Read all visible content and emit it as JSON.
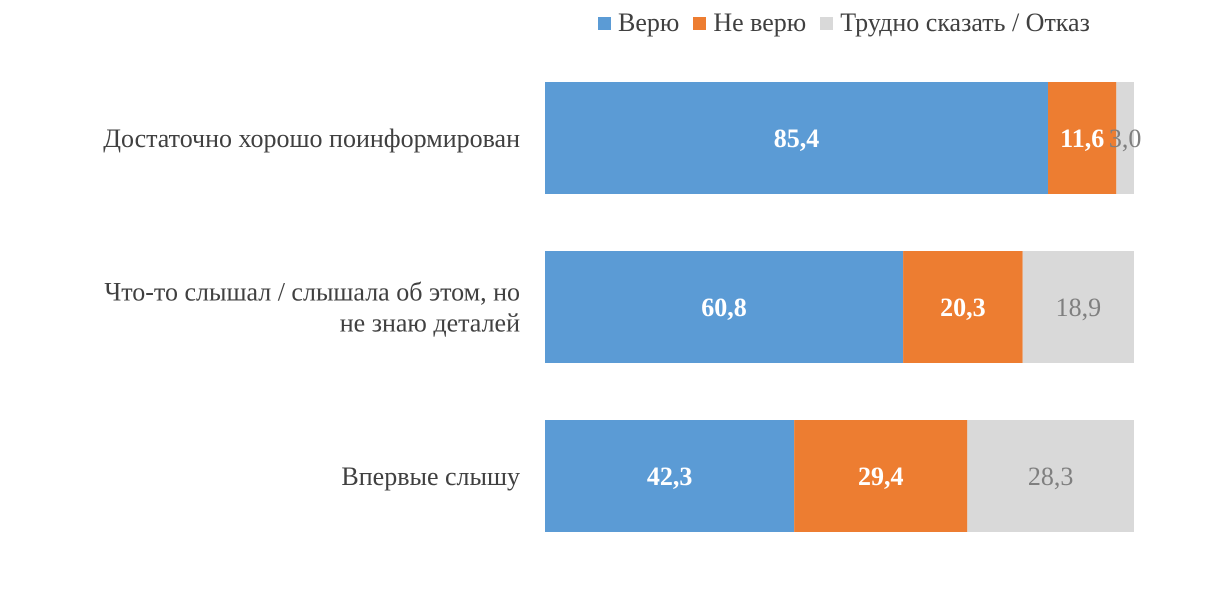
{
  "chart_data": {
    "type": "bar",
    "orientation": "horizontal",
    "stacked": true,
    "categories": [
      [
        "Достаточно хорошо поинформирован"
      ],
      [
        "Что-то слышал / слышала об этом, но",
        "не знаю деталей"
      ],
      [
        "Впервые слышу"
      ]
    ],
    "series": [
      {
        "name": "Верю",
        "color": "#5B9BD5",
        "label_color": "#ffffff",
        "label_bold": true,
        "values": [
          85.4,
          60.8,
          42.3
        ],
        "labels": [
          "85,4",
          "60,8",
          "42,3"
        ]
      },
      {
        "name": "Не верю",
        "color": "#ED7D31",
        "label_color": "#ffffff",
        "label_bold": true,
        "values": [
          11.6,
          20.3,
          29.4
        ],
        "labels": [
          "11,6",
          "20,3",
          "29,4"
        ]
      },
      {
        "name": "Трудно сказать / Отказ",
        "color": "#D9D9D9",
        "label_color": "#7F7F7F",
        "label_bold": false,
        "values": [
          3.0,
          18.9,
          28.3
        ],
        "labels": [
          "3,0",
          "18,9",
          "28,3"
        ]
      }
    ],
    "xlim": [
      0,
      100
    ],
    "grid": false,
    "legend": "top"
  }
}
